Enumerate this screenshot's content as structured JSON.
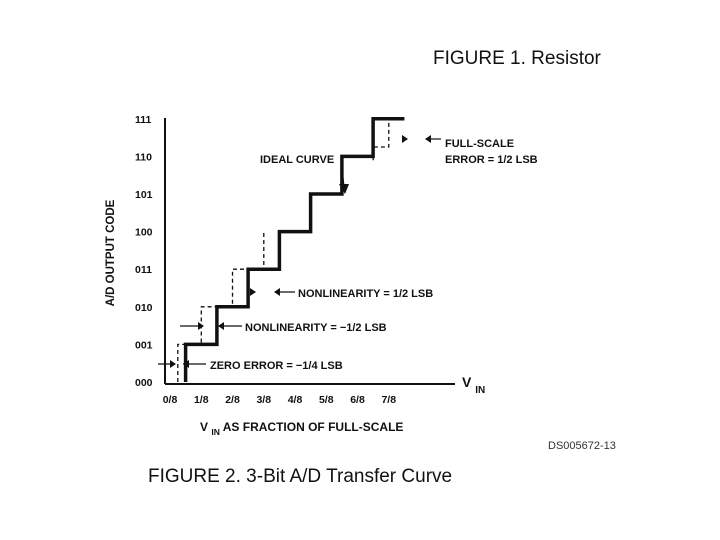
{
  "figure1_caption": "FIGURE 1. Resistor",
  "figure2_caption": "FIGURE 2. 3-Bit A/D Transfer Curve",
  "doc_number": "DS005672-13",
  "chart_data": {
    "type": "line",
    "title": "",
    "ylabel": "A/D OUTPUT CODE",
    "xlabel_main": "V",
    "xlabel_sub": "IN",
    "xlabel_rest": " AS FRACTION OF FULL-SCALE",
    "axis_end_label_main": "V",
    "axis_end_label_sub": "IN",
    "y_ticks": [
      "111",
      "110",
      "101",
      "100",
      "011",
      "010",
      "001",
      "000"
    ],
    "x_ticks": [
      "0/8",
      "1/8",
      "2/8",
      "3/8",
      "4/8",
      "5/8",
      "6/8",
      "7/8"
    ],
    "xlim": [
      0,
      1
    ],
    "ylim": [
      0,
      7
    ],
    "series": [
      {
        "style": "solid",
        "x": [
          0.0625,
          0.0625,
          0.1875,
          0.1875,
          0.3125,
          0.3125,
          0.4375,
          0.4375,
          0.5625,
          0.5625,
          0.6875,
          0.6875,
          0.8125,
          0.8125,
          0.9375
        ],
        "y": [
          0,
          1,
          1,
          2,
          2,
          3,
          3,
          4,
          4,
          5,
          5,
          6,
          6,
          7,
          7
        ]
      },
      {
        "style": "dashed",
        "x": [
          0.03125,
          0.03125,
          0.125,
          0.125,
          0.25,
          0.25,
          0.375,
          0.375
        ],
        "y": [
          0,
          1,
          1,
          2,
          2,
          3,
          3,
          4
        ]
      },
      {
        "style": "dashed",
        "x": [
          0.8125,
          0.8125,
          0.875,
          0.875
        ],
        "y": [
          5.9,
          6.25,
          6.25,
          6.9
        ]
      }
    ],
    "annotations": {
      "ideal_curve": "IDEAL CURVE",
      "full_scale_1": "FULL-SCALE",
      "full_scale_2": "ERROR = 1/2 LSB",
      "nonlinearity_pos": "NONLINEARITY = 1/2 LSB",
      "nonlinearity_neg": "NONLINEARITY = −1/2 LSB",
      "zero_error": "ZERO ERROR = −1/4 LSB"
    }
  }
}
